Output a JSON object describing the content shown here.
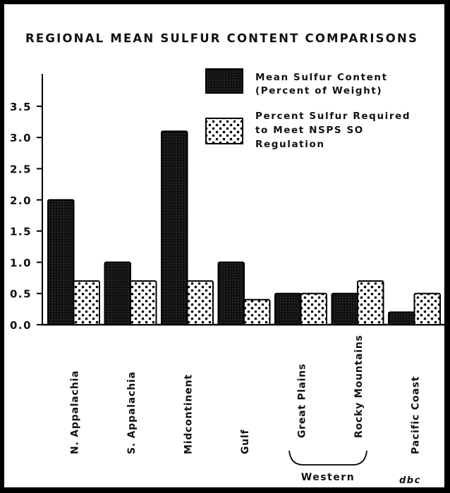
{
  "chart_data": {
    "type": "bar",
    "title": "REGIONAL MEAN SULFUR CONTENT COMPARISONS",
    "xlabel": "",
    "ylabel": "",
    "ylim": [
      0,
      4.0
    ],
    "yticks": [
      "0.0",
      "0.5",
      "1.0",
      "1.5",
      "2.0",
      "2.5",
      "3.0",
      "3.5"
    ],
    "grid": false,
    "legend_placement": "top-right",
    "categories": [
      "N. Appalachia",
      "S. Appalachia",
      "Midcontinent",
      "Gulf",
      "Great Plains",
      "Rocky Mountains",
      "Pacific Coast"
    ],
    "series": [
      {
        "name": "Mean Sulfur Content (Percent of Weight)",
        "legend_lines": [
          "Mean Sulfur Content",
          "(Percent of Weight)"
        ],
        "pattern": "dark-stipple",
        "values": [
          2.0,
          1.0,
          3.1,
          1.0,
          0.5,
          0.5,
          0.2
        ]
      },
      {
        "name": "Percent Sulfur Required to Meet NSPS SO Regulation",
        "legend_lines": [
          "Percent Sulfur Required",
          "to Meet NSPS SO",
          "Regulation"
        ],
        "pattern": "white-dots",
        "values": [
          0.7,
          0.7,
          0.7,
          0.4,
          0.5,
          0.7,
          0.5
        ]
      }
    ],
    "group_annotation": {
      "label": "Western",
      "categories": [
        "Great Plains",
        "Rocky Mountains"
      ]
    },
    "signature": "dbc"
  },
  "colors": {
    "dark": "#111111",
    "light": "#ffffff",
    "border": "#000000"
  }
}
